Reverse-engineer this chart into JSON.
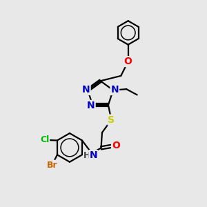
{
  "bg_color": "#e8e8e8",
  "atom_colors": {
    "C": "#000000",
    "N": "#0000cc",
    "O": "#ff0000",
    "S": "#cccc00",
    "Cl": "#00bb00",
    "Br": "#cc6600",
    "H": "#444444"
  },
  "bond_color": "#000000",
  "bond_width": 1.6,
  "font_size_atom": 10,
  "figsize": [
    3.0,
    3.0
  ],
  "dpi": 100
}
